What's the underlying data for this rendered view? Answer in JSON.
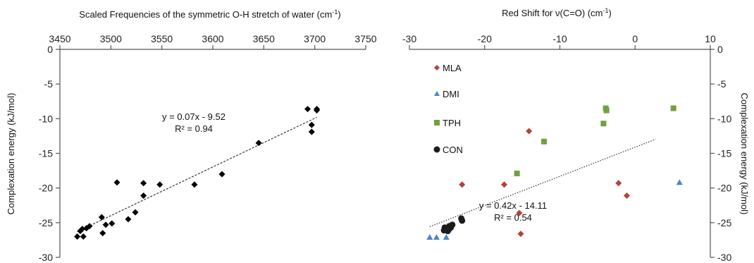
{
  "chart_data": [
    {
      "type": "scatter",
      "title": "Scaled Frequencies of the symmetric O-H stretch of water (cm",
      "title_sup": "-1",
      "title_end": ")",
      "ylabel": "Complexation energy (kJ/mol)",
      "xlim": [
        3450,
        3750
      ],
      "ylim": [
        -30,
        0
      ],
      "x_ticks": [
        3450,
        3500,
        3550,
        3600,
        3650,
        3700,
        3750
      ],
      "y_ticks": [
        0,
        -5,
        -10,
        -15,
        -20,
        -25,
        -30
      ],
      "x_axis_position": "top",
      "grid": false,
      "series": [
        {
          "marker": "diamond",
          "color": "#000000",
          "points": [
            [
              3467,
              -27.0
            ],
            [
              3470,
              -26.2
            ],
            [
              3472,
              -25.9
            ],
            [
              3473,
              -27.0
            ],
            [
              3476,
              -25.8
            ],
            [
              3479,
              -25.5
            ],
            [
              3491,
              -24.2
            ],
            [
              3492,
              -26.5
            ],
            [
              3495,
              -25.3
            ],
            [
              3501,
              -25.1
            ],
            [
              3506,
              -19.2
            ],
            [
              3517,
              -24.5
            ],
            [
              3524,
              -23.5
            ],
            [
              3532,
              -19.3
            ],
            [
              3532,
              -21.1
            ],
            [
              3548,
              -19.5
            ],
            [
              3582,
              -19.5
            ],
            [
              3609,
              -18.0
            ],
            [
              3645,
              -13.5
            ],
            [
              3693,
              -8.6
            ],
            [
              3697,
              -10.9
            ],
            [
              3697,
              -11.9
            ],
            [
              3702,
              -8.6
            ],
            [
              3702,
              -8.8
            ]
          ]
        }
      ],
      "trendline": {
        "slope": 0.07,
        "intercept": -9.52,
        "x_range": [
          3467,
          3702
        ]
      },
      "annotations": [
        "y = 0.07x - 9.52",
        "R² = 0.94"
      ]
    },
    {
      "type": "scatter",
      "title": "Red Shift for ν(C=O) (cm",
      "title_sup": "-1",
      "title_end": ")",
      "ylabel": "Complexation energy (kJ/mol)",
      "xlim": [
        -30,
        10
      ],
      "ylim": [
        -30,
        0
      ],
      "x_ticks": [
        -30,
        -20,
        -10,
        0,
        10
      ],
      "y_ticks": [
        0,
        -5,
        -10,
        -15,
        -20,
        -25,
        -30
      ],
      "x_axis_position": "top",
      "y_axis_position": "right",
      "grid": false,
      "legend_position": "upper-left",
      "series": [
        {
          "name": "MLA",
          "marker": "diamond",
          "color": "#b5413a",
          "points": [
            [
              -23,
              -19.5
            ],
            [
              -14.1,
              -11.8
            ],
            [
              -17.4,
              -19.5
            ],
            [
              -2.2,
              -19.3
            ],
            [
              -1.1,
              -21.1
            ],
            [
              -15.4,
              -23.6
            ],
            [
              -15.2,
              -26.6
            ]
          ]
        },
        {
          "name": "DMI",
          "marker": "triangle",
          "color": "#4a86c8",
          "points": [
            [
              -27.3,
              -27.1
            ],
            [
              -26.4,
              -27.1
            ],
            [
              -25.1,
              -27.1
            ],
            [
              5.9,
              -19.2
            ]
          ]
        },
        {
          "name": "TPH",
          "marker": "square",
          "color": "#72a03e",
          "points": [
            [
              -3.9,
              -8.5
            ],
            [
              -3.8,
              -8.8
            ],
            [
              -4.2,
              -10.7
            ],
            [
              5.1,
              -8.5
            ],
            [
              -12.1,
              -13.3
            ],
            [
              -15.7,
              -17.9
            ]
          ]
        },
        {
          "name": "CON",
          "marker": "circle",
          "color": "#1c1c1c",
          "points": [
            [
              -23.1,
              -24.4
            ],
            [
              -23.0,
              -24.7
            ],
            [
              -24.3,
              -25.3
            ],
            [
              -24.7,
              -25.5
            ],
            [
              -25.0,
              -25.8
            ],
            [
              -25.3,
              -25.7
            ],
            [
              -25.4,
              -26.1
            ],
            [
              -24.9,
              -26.2
            ],
            [
              -25.1,
              -26.0
            ],
            [
              -24.5,
              -25.7
            ],
            [
              -24.7,
              -25.9
            ]
          ]
        }
      ],
      "trendline": {
        "slope": 0.42,
        "intercept": -14.11,
        "x_range": [
          -27.3,
          2.7
        ]
      },
      "annotations": [
        "y = 0.42x - 14.11",
        "R² = 0.54"
      ]
    }
  ]
}
